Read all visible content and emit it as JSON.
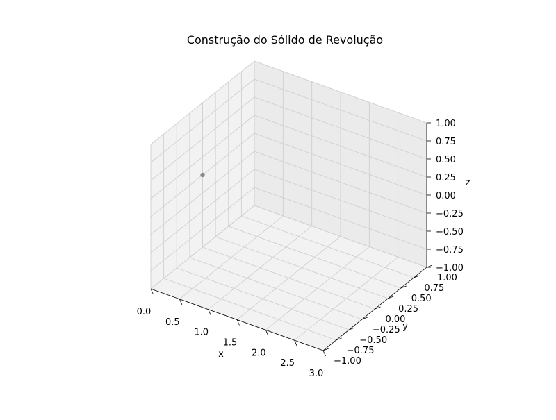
{
  "chart_data": {
    "type": "scatter",
    "projection": "3d",
    "title": "Construção do Sólido de Revolução",
    "xlabel": "x",
    "ylabel": "y",
    "zlabel": "z",
    "xlim": [
      0.0,
      3.0
    ],
    "ylim": [
      -1.0,
      1.0
    ],
    "zlim": [
      -1.0,
      1.0
    ],
    "xticks": [
      "0.0",
      "0.5",
      "1.0",
      "1.5",
      "2.0",
      "2.5",
      "3.0"
    ],
    "yticks": [
      "−1.00",
      "−0.75",
      "−0.50",
      "−0.25",
      "0.00",
      "0.25",
      "0.50",
      "0.75",
      "1.00"
    ],
    "zticks": [
      "−1.00",
      "−0.75",
      "−0.50",
      "−0.25",
      "0.00",
      "0.25",
      "0.50",
      "0.75",
      "1.00"
    ],
    "grid": true,
    "points": [
      {
        "x": 0.0,
        "y": 0.0,
        "z": 0.0
      }
    ],
    "point_color": "#808080"
  }
}
